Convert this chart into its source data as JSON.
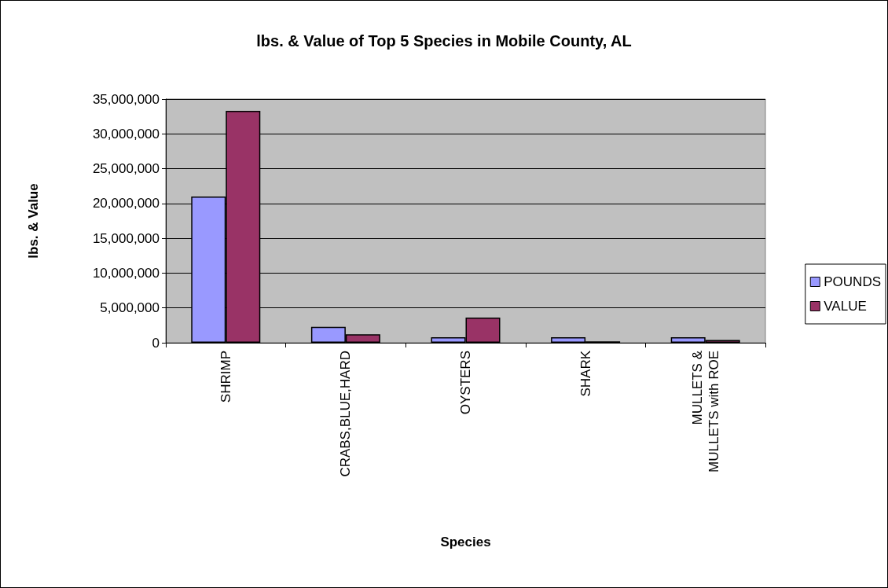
{
  "chart_data": {
    "type": "bar",
    "title": "lbs. & Value of Top 5 Species in Mobile County, AL",
    "xlabel": "Species",
    "ylabel": "lbs. & Value",
    "categories": [
      "SHRIMP",
      "CRABS,BLUE,HARD",
      "OYSTERS",
      "SHARK",
      "MULLETS &\nMULLETS with ROE"
    ],
    "series": [
      {
        "name": "POUNDS",
        "color": "#9999ff",
        "values": [
          21000000,
          2300000,
          800000,
          800000,
          800000
        ]
      },
      {
        "name": "VALUE",
        "color": "#993366",
        "values": [
          33300000,
          1200000,
          3600000,
          200000,
          400000
        ]
      }
    ],
    "ylim": [
      0,
      35000000
    ],
    "yticks": [
      0,
      {
        "value": 5000000,
        "label": "5,000,000"
      },
      {
        "value": 10000000,
        "label": "10,000,000"
      },
      {
        "value": 15000000,
        "label": "15,000,000"
      },
      {
        "value": 20000000,
        "label": "20,000,000"
      },
      {
        "value": 25000000,
        "label": "25,000,000"
      },
      {
        "value": 30000000,
        "label": "30,000,000"
      },
      {
        "value": 35000000,
        "label": "35,000,000"
      }
    ],
    "grid": "y",
    "legend": "right"
  }
}
